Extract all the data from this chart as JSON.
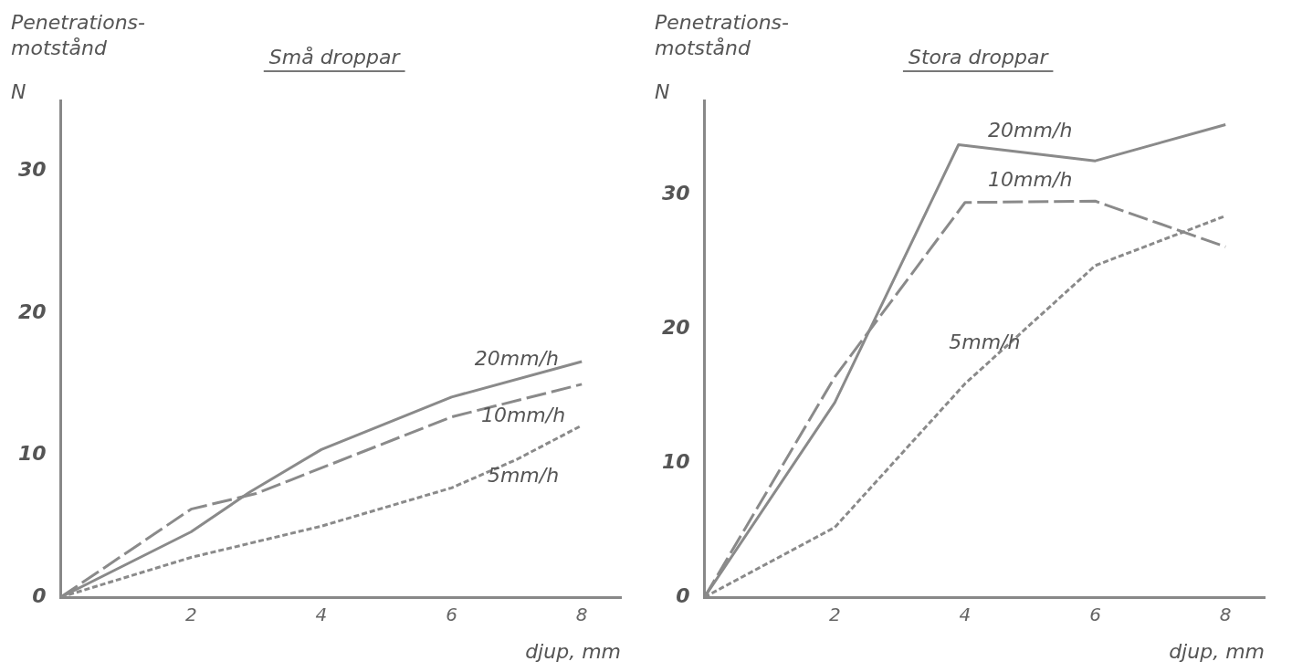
{
  "chart_data": [
    {
      "type": "line",
      "title": "Små droppar",
      "ylabel": "Penetrations-\nmotstånd\nN",
      "xlabel": "djup, mm",
      "xlim": [
        0,
        8.6
      ],
      "xticks": [
        2,
        4,
        6,
        8
      ],
      "ylim": [
        0,
        35
      ],
      "yticks": [
        0,
        10,
        20,
        30
      ],
      "grid": false,
      "legend": false,
      "marker": "none",
      "series": [
        {
          "name": "20mm/h",
          "color": "#8a8a8a",
          "line_style": "solid",
          "x": [
            0,
            2,
            2.9,
            4,
            6,
            8
          ],
          "values": [
            0,
            4.6,
            7.4,
            10.4,
            14.1,
            16.6
          ]
        },
        {
          "name": "10mm/h",
          "color": "#8a8a8a",
          "line_style": "dashed",
          "x": [
            0,
            2,
            3,
            3.5,
            6,
            8
          ],
          "values": [
            0,
            6.2,
            7.3,
            8.2,
            12.7,
            15.0
          ]
        },
        {
          "name": "5mm/h",
          "color": "#8a8a8a",
          "line_style": "dotted",
          "x": [
            0,
            2,
            4,
            6,
            7,
            8
          ],
          "values": [
            0,
            2.8,
            5.0,
            7.7,
            9.7,
            12.1
          ]
        }
      ]
    },
    {
      "type": "line",
      "title": "Stora droppar",
      "ylabel": "Penetrations-\nmotstånd\nN",
      "xlabel": "djup, mm",
      "xlim": [
        0,
        8.6
      ],
      "xticks": [
        2,
        4,
        6,
        8
      ],
      "ylim": [
        0,
        37
      ],
      "yticks": [
        0,
        10,
        20,
        30
      ],
      "grid": false,
      "legend": false,
      "marker": "none",
      "series": [
        {
          "name": "20mm/h",
          "color": "#8a8a8a",
          "line_style": "solid",
          "x": [
            0,
            2,
            3.9,
            6,
            8
          ],
          "values": [
            0,
            14.5,
            33.7,
            32.5,
            35.2
          ]
        },
        {
          "name": "10mm/h",
          "color": "#8a8a8a",
          "line_style": "dashed",
          "x": [
            0,
            2,
            4,
            6,
            8
          ],
          "values": [
            0,
            16.4,
            29.4,
            29.5,
            26.1
          ]
        },
        {
          "name": "5mm/h",
          "color": "#8a8a8a",
          "line_style": "dotted",
          "x": [
            0,
            2,
            4,
            6,
            8
          ],
          "values": [
            0,
            5.2,
            15.9,
            24.7,
            28.4
          ]
        }
      ]
    }
  ]
}
